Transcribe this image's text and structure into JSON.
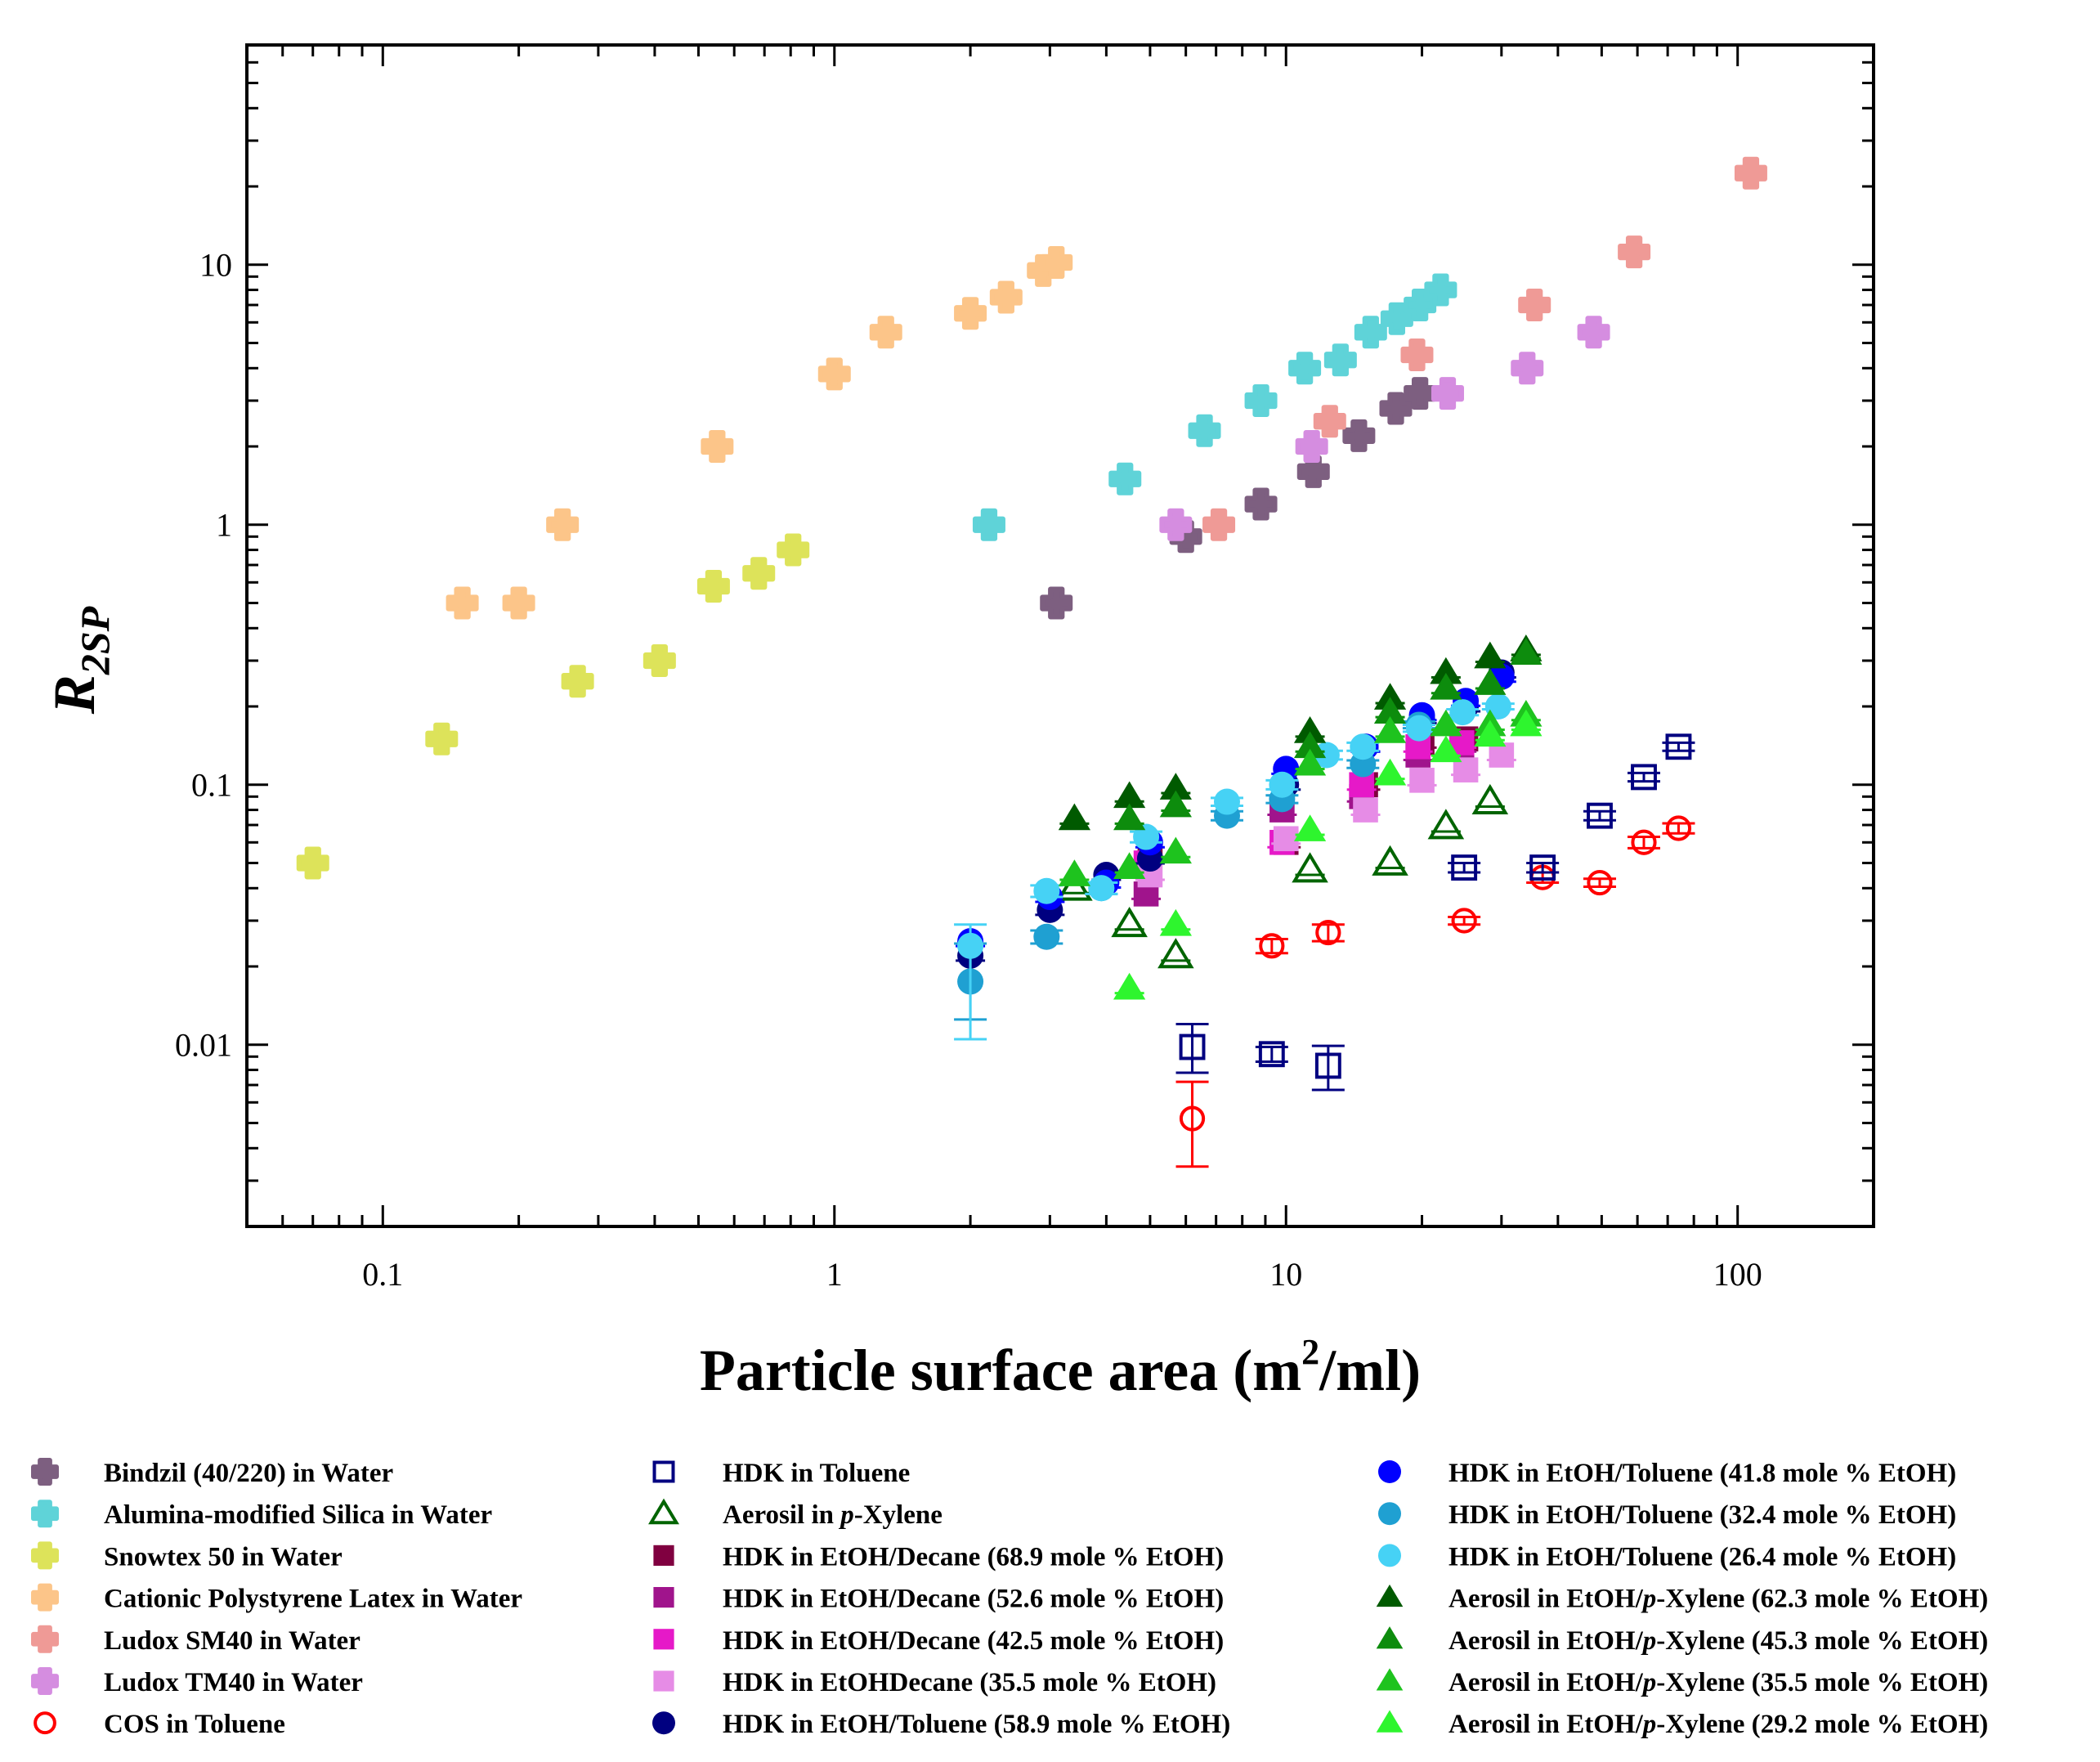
{
  "chart_data": {
    "type": "scatter",
    "xscale": "log",
    "yscale": "log",
    "xlim": [
      0.05,
      200
    ],
    "ylim": [
      0.002,
      70
    ],
    "xlabel": "Particle surface area (m²/ml)",
    "xlabel_main": "Particle surface area (m",
    "xlabel_sup": "2",
    "xlabel_tail": "/ml)",
    "ylabel": "R2SP",
    "ylabel_main": "R",
    "ylabel_sub": "2SP",
    "xticks": [
      {
        "value": 0.1,
        "label": "0.1"
      },
      {
        "value": 1,
        "label": "1"
      },
      {
        "value": 10,
        "label": "10"
      },
      {
        "value": 100,
        "label": "100"
      }
    ],
    "yticks": [
      {
        "value": 0.01,
        "label": "0.01"
      },
      {
        "value": 0.1,
        "label": "0.1"
      },
      {
        "value": 1,
        "label": "1"
      },
      {
        "value": 10,
        "label": "10"
      }
    ],
    "legend_position": "bottom",
    "series": [
      {
        "name": "Bindzil (40/220) in Water",
        "marker": "cross",
        "color": "#7d5f80",
        "points": [
          [
            3.1,
            0.5
          ],
          [
            6.0,
            0.9
          ],
          [
            8.8,
            1.2
          ],
          [
            11.5,
            1.6
          ],
          [
            14.5,
            2.2
          ],
          [
            17.5,
            2.8
          ],
          [
            19.8,
            3.2
          ]
        ]
      },
      {
        "name": "Alumina-modified Silica in Water",
        "marker": "cross",
        "color": "#5fd3d8",
        "points": [
          [
            2.2,
            1.0
          ],
          [
            4.4,
            1.5
          ],
          [
            6.6,
            2.3
          ],
          [
            8.8,
            3.0
          ],
          [
            11.0,
            4.0
          ],
          [
            13.2,
            4.3
          ],
          [
            15.4,
            5.5
          ],
          [
            17.6,
            6.2
          ],
          [
            19.8,
            7.0
          ],
          [
            22.0,
            8.0
          ]
        ]
      },
      {
        "name": "Snowtex 50 in Water",
        "marker": "cross",
        "color": "#dde35a",
        "points": [
          [
            0.07,
            0.05
          ],
          [
            0.135,
            0.15
          ],
          [
            0.27,
            0.25
          ],
          [
            0.41,
            0.3
          ],
          [
            0.54,
            0.58
          ],
          [
            0.68,
            0.65
          ],
          [
            0.81,
            0.8
          ]
        ]
      },
      {
        "name": "Cationic Polystyrene Latex in Water",
        "marker": "cross",
        "color": "#fcc589",
        "points": [
          [
            0.15,
            0.5
          ],
          [
            0.2,
            0.5
          ],
          [
            0.25,
            1.0
          ],
          [
            0.55,
            2.0
          ],
          [
            1.0,
            3.8
          ],
          [
            1.3,
            5.5
          ],
          [
            2.0,
            6.5
          ],
          [
            2.4,
            7.5
          ],
          [
            2.9,
            9.5
          ],
          [
            3.1,
            10.2
          ]
        ]
      },
      {
        "name": "Ludox SM40 in Water",
        "marker": "cross",
        "color": "#ef9a96",
        "points": [
          [
            7.1,
            1.0
          ],
          [
            12.5,
            2.5
          ],
          [
            19.5,
            4.5
          ],
          [
            35.5,
            7.0
          ],
          [
            59.0,
            11.2
          ],
          [
            107.0,
            22.5
          ]
        ]
      },
      {
        "name": "Ludox TM40 in Water",
        "marker": "cross",
        "color": "#d58de0",
        "points": [
          [
            5.7,
            1.0
          ],
          [
            11.4,
            2.0
          ],
          [
            22.8,
            3.2
          ],
          [
            34.2,
            4.0
          ],
          [
            48.0,
            5.5
          ]
        ]
      },
      {
        "name": "COS in Toluene",
        "marker": "circle-open",
        "color": "#ff0000",
        "points": [
          [
            6.2,
            0.0052,
            0.0034,
            0.0072
          ],
          [
            9.3,
            0.024,
            0.0225,
            0.0255
          ],
          [
            12.4,
            0.027,
            0.025,
            0.029
          ],
          [
            24.8,
            0.03,
            0.029,
            0.031
          ],
          [
            37.0,
            0.044,
            0.042,
            0.046
          ],
          [
            49.5,
            0.042,
            0.0405,
            0.0435
          ],
          [
            62.0,
            0.06,
            0.057,
            0.063
          ],
          [
            74.0,
            0.068,
            0.065,
            0.071
          ]
        ]
      },
      {
        "name": "HDK in Toluene",
        "marker": "square-open",
        "color": "#000080",
        "points": [
          [
            6.2,
            0.0098,
            0.0078,
            0.012
          ],
          [
            9.3,
            0.0092,
            0.0086,
            0.0098
          ],
          [
            12.4,
            0.0083,
            0.0067,
            0.0099
          ],
          [
            24.8,
            0.048,
            0.046,
            0.05
          ],
          [
            37.0,
            0.048,
            0.046,
            0.05
          ],
          [
            49.5,
            0.076,
            0.073,
            0.079
          ],
          [
            62.0,
            0.107,
            0.103,
            0.111
          ],
          [
            74.0,
            0.14,
            0.135,
            0.145
          ]
        ]
      },
      {
        "name": "Aerosil in p-Xylene",
        "name_prefix": "Aerosil in ",
        "name_italic": "p",
        "name_suffix": "-Xylene",
        "marker": "triangle-open",
        "color": "#006400",
        "points": [
          [
            3.4,
            0.04
          ],
          [
            4.5,
            0.029
          ],
          [
            5.7,
            0.022
          ],
          [
            11.3,
            0.047
          ],
          [
            17.0,
            0.05
          ],
          [
            22.6,
            0.069
          ],
          [
            28.3,
            0.086
          ]
        ]
      },
      {
        "name": "HDK in EtOH/Decane (68.9 mole % EtOH)",
        "marker": "square",
        "color": "#800040",
        "points": [
          [
            5.0,
            0.055
          ],
          [
            10.0,
            0.06
          ],
          [
            15.0,
            0.1
          ],
          [
            20.0,
            0.145
          ],
          [
            25.0,
            0.15
          ]
        ]
      },
      {
        "name": "HDK in EtOH/Decane (52.6 mole % EtOH)",
        "marker": "square",
        "color": "#a0148c",
        "points": [
          [
            4.9,
            0.038
          ],
          [
            9.8,
            0.08
          ],
          [
            14.7,
            0.09
          ],
          [
            19.6,
            0.13
          ],
          [
            24.5,
            0.14
          ]
        ]
      },
      {
        "name": "HDK in EtOH/Decane (42.5 mole % EtOH)",
        "marker": "square",
        "color": "#e619c8",
        "points": [
          [
            4.9,
            0.05
          ],
          [
            9.8,
            0.06
          ],
          [
            14.7,
            0.1
          ],
          [
            19.6,
            0.14
          ],
          [
            24.5,
            0.145
          ]
        ]
      },
      {
        "name": "HDK in EtOHDecane (35.5 mole % EtOH)",
        "marker": "square",
        "color": "#e68ce6",
        "points": [
          [
            5.0,
            0.045
          ],
          [
            10.0,
            0.062
          ],
          [
            15.0,
            0.08
          ],
          [
            20.0,
            0.104
          ],
          [
            25.0,
            0.114
          ],
          [
            30.0,
            0.13
          ]
        ]
      },
      {
        "name": "HDK in EtOH/Toluene (58.9 mole % EtOH)",
        "marker": "circle",
        "color": "#000080",
        "points": [
          [
            2.0,
            0.022
          ],
          [
            3.0,
            0.033
          ],
          [
            4.0,
            0.045
          ],
          [
            5.0,
            0.052
          ],
          [
            10.0,
            0.1
          ],
          [
            15.0,
            0.14
          ],
          [
            20.0,
            0.18
          ],
          [
            25.0,
            0.2
          ],
          [
            30.0,
            0.27
          ]
        ]
      },
      {
        "name": "HDK in EtOH/Toluene (41.8 mole % EtOH)",
        "marker": "circle",
        "color": "#0000ff",
        "points": [
          [
            2.0,
            0.025
          ],
          [
            3.0,
            0.037
          ],
          [
            4.0,
            0.042
          ],
          [
            5.0,
            0.06
          ],
          [
            10.0,
            0.115
          ],
          [
            15.0,
            0.14
          ],
          [
            20.0,
            0.185
          ],
          [
            25.0,
            0.21
          ],
          [
            30.0,
            0.26
          ]
        ]
      },
      {
        "name": "HDK in EtOH/Toluene (32.4 mole % EtOH)",
        "marker": "circle",
        "color": "#1fa0d2",
        "points": [
          [
            2.0,
            0.0175,
            0.0125,
            0.0245
          ],
          [
            2.95,
            0.026,
            0.0245,
            0.0275
          ],
          [
            3.9,
            0.04,
            0.038,
            0.042
          ],
          [
            7.4,
            0.076,
            0.073,
            0.079
          ],
          [
            9.8,
            0.088,
            0.085,
            0.091
          ],
          [
            14.8,
            0.12,
            0.116,
            0.124
          ],
          [
            19.7,
            0.17,
            0.165,
            0.175
          ]
        ]
      },
      {
        "name": "HDK in EtOH/Toluene (26.4 mole % EtOH)",
        "marker": "circle",
        "color": "#46d2f5",
        "points": [
          [
            2.0,
            0.024,
            0.0105,
            0.029
          ],
          [
            2.95,
            0.039,
            0.037,
            0.041
          ],
          [
            3.9,
            0.04,
            0.038,
            0.042
          ],
          [
            4.9,
            0.063,
            0.06,
            0.066
          ],
          [
            7.4,
            0.086,
            0.083,
            0.089
          ],
          [
            9.8,
            0.1,
            0.096,
            0.104
          ],
          [
            12.3,
            0.13,
            0.125,
            0.135
          ],
          [
            14.8,
            0.14,
            0.135,
            0.145
          ],
          [
            19.7,
            0.165,
            0.16,
            0.17
          ],
          [
            24.6,
            0.19,
            0.185,
            0.195
          ],
          [
            29.5,
            0.2,
            0.195,
            0.205
          ]
        ]
      },
      {
        "name": "Aerosil in EtOH/p-Xylene (62.3 mole % EtOH)",
        "name_prefix": "Aerosil in EtOH/",
        "name_italic": "p",
        "name_suffix": "-Xylene (62.3 mole % EtOH)",
        "marker": "triangle",
        "color": "#005a00",
        "points": [
          [
            3.4,
            0.074
          ],
          [
            4.5,
            0.09
          ],
          [
            5.7,
            0.097
          ],
          [
            11.3,
            0.16
          ],
          [
            17.0,
            0.215
          ],
          [
            22.6,
            0.27
          ],
          [
            28.3,
            0.31
          ],
          [
            34.0,
            0.33
          ]
        ]
      },
      {
        "name": "Aerosil in EtOH/p-Xylene (45.3 mole % EtOH)",
        "name_prefix": "Aerosil in EtOH/",
        "name_italic": "p",
        "name_suffix": "-Xylene (45.3 mole % EtOH)",
        "marker": "triangle",
        "color": "#0d8c0d",
        "points": [
          [
            4.5,
            0.074
          ],
          [
            5.7,
            0.083
          ],
          [
            11.3,
            0.14
          ],
          [
            17.0,
            0.19
          ],
          [
            22.6,
            0.235
          ],
          [
            28.3,
            0.245
          ],
          [
            34.0,
            0.32
          ]
        ]
      },
      {
        "name": "Aerosil in EtOH/p-Xylene (35.5 mole % EtOH)",
        "name_prefix": "Aerosil in EtOH/",
        "name_italic": "p",
        "name_suffix": "-Xylene (35.5 mole % EtOH)",
        "marker": "triangle",
        "color": "#1ec31e",
        "points": [
          [
            3.4,
            0.045
          ],
          [
            4.5,
            0.048
          ],
          [
            5.7,
            0.055
          ],
          [
            11.3,
            0.12
          ],
          [
            17.0,
            0.16
          ],
          [
            22.6,
            0.17
          ],
          [
            28.3,
            0.17
          ],
          [
            34.0,
            0.185
          ]
        ]
      },
      {
        "name": "Aerosil in EtOH/p-Xylene (29.2 mole % EtOH)",
        "name_prefix": "Aerosil in EtOH/",
        "name_italic": "p",
        "name_suffix": "-Xylene (29.2 mole % EtOH)",
        "marker": "triangle",
        "color": "#2ef52e",
        "points": [
          [
            4.5,
            0.0165
          ],
          [
            5.7,
            0.029
          ],
          [
            11.3,
            0.067
          ],
          [
            17.0,
            0.11
          ],
          [
            22.6,
            0.135
          ],
          [
            28.3,
            0.155
          ],
          [
            34.0,
            0.17
          ]
        ]
      }
    ]
  }
}
